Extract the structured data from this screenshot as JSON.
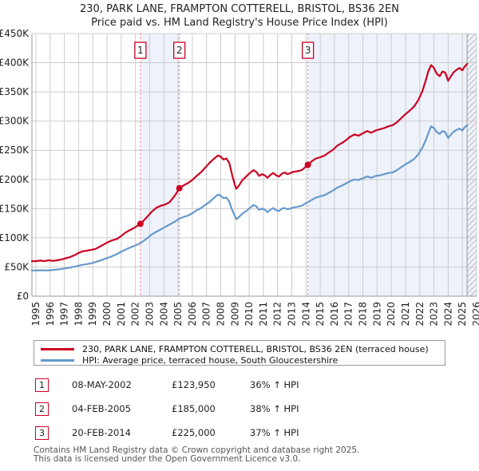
{
  "title": {
    "line1": "230, PARK LANE, FRAMPTON COTTERELL, BRISTOL, BS36 2EN",
    "line2": "Price paid vs. HM Land Registry's House Price Index (HPI)"
  },
  "colors": {
    "property_line": "#cc0022",
    "hpi_line": "#6699cc",
    "sale_dash": "#e57373",
    "shade": "#eef2fb",
    "grid": "#cccccc",
    "axis": "#999999",
    "border_light": "#cccccc",
    "hatch": "#bbbbbb",
    "tick_text": "#222222",
    "badge_border": "#cc0022"
  },
  "chart_data": {
    "type": "line",
    "title": "230, PARK LANE, FRAMPTON COTTERELL, BRISTOL, BS36 2EN — Price paid vs. HPI",
    "xlabel": "",
    "ylabel": "",
    "grid": true,
    "legend_position": "bottom",
    "xlim": [
      1995,
      2026
    ],
    "ylim": [
      0,
      450000
    ],
    "y_ticks": [
      {
        "v": 0,
        "label": "£0"
      },
      {
        "v": 50000,
        "label": "£50K"
      },
      {
        "v": 100000,
        "label": "£100K"
      },
      {
        "v": 150000,
        "label": "£150K"
      },
      {
        "v": 200000,
        "label": "£200K"
      },
      {
        "v": 250000,
        "label": "£250K"
      },
      {
        "v": 300000,
        "label": "£300K"
      },
      {
        "v": 350000,
        "label": "£350K"
      },
      {
        "v": 400000,
        "label": "£400K"
      },
      {
        "v": 450000,
        "label": "£450K"
      }
    ],
    "x_ticks": [
      "1995",
      "1996",
      "1997",
      "1998",
      "1999",
      "2000",
      "2001",
      "2002",
      "2003",
      "2004",
      "2005",
      "2006",
      "2007",
      "2008",
      "2009",
      "2010",
      "2011",
      "2012",
      "2013",
      "2014",
      "2015",
      "2016",
      "2017",
      "2018",
      "2019",
      "2020",
      "2021",
      "2022",
      "2023",
      "2024",
      "2025",
      "2026"
    ],
    "shaded_regions": [
      [
        2002.35,
        2005.09
      ],
      [
        2014.13,
        2026
      ]
    ],
    "hatch_region": [
      2025.33,
      2026
    ],
    "sale_markers": [
      {
        "n": "1",
        "x": 2002.35,
        "value": 123950
      },
      {
        "n": "2",
        "x": 2005.09,
        "value": 185000
      },
      {
        "n": "3",
        "x": 2014.13,
        "value": 225000
      }
    ],
    "series": [
      {
        "name": "230, PARK LANE, FRAMPTON COTTERELL, BRISTOL, BS36 2EN (terraced house)",
        "color": "#cc0022",
        "points": [
          [
            1995.0,
            60000
          ],
          [
            1995.3,
            61000
          ],
          [
            1995.6,
            60000
          ],
          [
            1995.9,
            61500
          ],
          [
            1996.2,
            60500
          ],
          [
            1996.5,
            61500
          ],
          [
            1996.8,
            63000
          ],
          [
            1997.1,
            65000
          ],
          [
            1997.4,
            67000
          ],
          [
            1997.7,
            70000
          ],
          [
            1998.0,
            74000
          ],
          [
            1998.3,
            77000
          ],
          [
            1998.6,
            78000
          ],
          [
            1998.9,
            79500
          ],
          [
            1999.2,
            81000
          ],
          [
            1999.5,
            85000
          ],
          [
            1999.8,
            89000
          ],
          [
            2000.1,
            93000
          ],
          [
            2000.4,
            96000
          ],
          [
            2000.7,
            98000
          ],
          [
            2001.0,
            103000
          ],
          [
            2001.3,
            109000
          ],
          [
            2001.6,
            113000
          ],
          [
            2001.9,
            117000
          ],
          [
            2002.35,
            123950
          ],
          [
            2002.6,
            130000
          ],
          [
            2002.9,
            138000
          ],
          [
            2003.2,
            146000
          ],
          [
            2003.5,
            152000
          ],
          [
            2003.8,
            155000
          ],
          [
            2004.1,
            157000
          ],
          [
            2004.4,
            161000
          ],
          [
            2004.7,
            170000
          ],
          [
            2004.9,
            177000
          ],
          [
            2005.09,
            185000
          ],
          [
            2005.4,
            190000
          ],
          [
            2005.7,
            194000
          ],
          [
            2006.0,
            199000
          ],
          [
            2006.3,
            206000
          ],
          [
            2006.6,
            212000
          ],
          [
            2006.9,
            220000
          ],
          [
            2007.2,
            228000
          ],
          [
            2007.5,
            235000
          ],
          [
            2007.8,
            241000
          ],
          [
            2008.0,
            239000
          ],
          [
            2008.2,
            234000
          ],
          [
            2008.4,
            236000
          ],
          [
            2008.6,
            228000
          ],
          [
            2008.8,
            208000
          ],
          [
            2009.0,
            190000
          ],
          [
            2009.1,
            184000
          ],
          [
            2009.3,
            190000
          ],
          [
            2009.5,
            198000
          ],
          [
            2009.8,
            205000
          ],
          [
            2010.0,
            210000
          ],
          [
            2010.3,
            216000
          ],
          [
            2010.5,
            213000
          ],
          [
            2010.7,
            206000
          ],
          [
            2010.9,
            209000
          ],
          [
            2011.1,
            207000
          ],
          [
            2011.3,
            203000
          ],
          [
            2011.5,
            208000
          ],
          [
            2011.7,
            211000
          ],
          [
            2011.9,
            207000
          ],
          [
            2012.1,
            205000
          ],
          [
            2012.3,
            210000
          ],
          [
            2012.5,
            212000
          ],
          [
            2012.7,
            209000
          ],
          [
            2012.9,
            211000
          ],
          [
            2013.1,
            213000
          ],
          [
            2013.4,
            214000
          ],
          [
            2013.7,
            216000
          ],
          [
            2013.9,
            220000
          ],
          [
            2014.13,
            225000
          ],
          [
            2014.4,
            231000
          ],
          [
            2014.7,
            236000
          ],
          [
            2015.0,
            238000
          ],
          [
            2015.3,
            241000
          ],
          [
            2015.6,
            246000
          ],
          [
            2015.9,
            251000
          ],
          [
            2016.2,
            258000
          ],
          [
            2016.5,
            262000
          ],
          [
            2016.8,
            267000
          ],
          [
            2017.1,
            273000
          ],
          [
            2017.4,
            277000
          ],
          [
            2017.7,
            275000
          ],
          [
            2018.0,
            279000
          ],
          [
            2018.3,
            283000
          ],
          [
            2018.6,
            280000
          ],
          [
            2018.9,
            284000
          ],
          [
            2019.2,
            286000
          ],
          [
            2019.5,
            288000
          ],
          [
            2019.8,
            291000
          ],
          [
            2020.1,
            293000
          ],
          [
            2020.4,
            298000
          ],
          [
            2020.7,
            305000
          ],
          [
            2021.0,
            312000
          ],
          [
            2021.3,
            318000
          ],
          [
            2021.6,
            325000
          ],
          [
            2021.9,
            336000
          ],
          [
            2022.2,
            352000
          ],
          [
            2022.4,
            368000
          ],
          [
            2022.6,
            385000
          ],
          [
            2022.8,
            396000
          ],
          [
            2023.0,
            391000
          ],
          [
            2023.2,
            381000
          ],
          [
            2023.4,
            377000
          ],
          [
            2023.6,
            385000
          ],
          [
            2023.8,
            383000
          ],
          [
            2024.0,
            369000
          ],
          [
            2024.2,
            377000
          ],
          [
            2024.4,
            384000
          ],
          [
            2024.6,
            388000
          ],
          [
            2024.8,
            391000
          ],
          [
            2025.0,
            387000
          ],
          [
            2025.15,
            393000
          ],
          [
            2025.33,
            398000
          ]
        ]
      },
      {
        "name": "HPI: Average price, terraced house, South Gloucestershire",
        "color": "#6699cc",
        "points": [
          [
            1995.0,
            44000
          ],
          [
            1995.4,
            44500
          ],
          [
            1995.8,
            44000
          ],
          [
            1996.2,
            45000
          ],
          [
            1996.6,
            46000
          ],
          [
            1997.0,
            47500
          ],
          [
            1997.4,
            49000
          ],
          [
            1997.8,
            51000
          ],
          [
            1998.2,
            53500
          ],
          [
            1998.6,
            55000
          ],
          [
            1999.0,
            57000
          ],
          [
            1999.4,
            60000
          ],
          [
            1999.8,
            63500
          ],
          [
            2000.2,
            67000
          ],
          [
            2000.6,
            71000
          ],
          [
            2001.0,
            76000
          ],
          [
            2001.4,
            81000
          ],
          [
            2001.8,
            85000
          ],
          [
            2002.2,
            89000
          ],
          [
            2002.35,
            91000
          ],
          [
            2002.7,
            97000
          ],
          [
            2003.0,
            103000
          ],
          [
            2003.3,
            108000
          ],
          [
            2003.6,
            112000
          ],
          [
            2003.9,
            116000
          ],
          [
            2004.2,
            120000
          ],
          [
            2004.5,
            124000
          ],
          [
            2004.8,
            128000
          ],
          [
            2005.09,
            133000
          ],
          [
            2005.4,
            136000
          ],
          [
            2005.7,
            138000
          ],
          [
            2006.0,
            142000
          ],
          [
            2006.3,
            147000
          ],
          [
            2006.6,
            151000
          ],
          [
            2006.9,
            156000
          ],
          [
            2007.2,
            161000
          ],
          [
            2007.5,
            168000
          ],
          [
            2007.8,
            174000
          ],
          [
            2008.0,
            172000
          ],
          [
            2008.2,
            168000
          ],
          [
            2008.4,
            169000
          ],
          [
            2008.6,
            162000
          ],
          [
            2008.8,
            148000
          ],
          [
            2009.0,
            137000
          ],
          [
            2009.1,
            132000
          ],
          [
            2009.3,
            136000
          ],
          [
            2009.5,
            141000
          ],
          [
            2009.8,
            146000
          ],
          [
            2010.0,
            150000
          ],
          [
            2010.3,
            156000
          ],
          [
            2010.5,
            154000
          ],
          [
            2010.7,
            148000
          ],
          [
            2010.9,
            150000
          ],
          [
            2011.1,
            148000
          ],
          [
            2011.3,
            144000
          ],
          [
            2011.5,
            148000
          ],
          [
            2011.7,
            151000
          ],
          [
            2011.9,
            147000
          ],
          [
            2012.1,
            146000
          ],
          [
            2012.3,
            150000
          ],
          [
            2012.5,
            151000
          ],
          [
            2012.7,
            149000
          ],
          [
            2012.9,
            150000
          ],
          [
            2013.1,
            152000
          ],
          [
            2013.4,
            153000
          ],
          [
            2013.7,
            155000
          ],
          [
            2013.9,
            158000
          ],
          [
            2014.13,
            161000
          ],
          [
            2014.4,
            165000
          ],
          [
            2014.7,
            169000
          ],
          [
            2015.0,
            171000
          ],
          [
            2015.3,
            173000
          ],
          [
            2015.6,
            177000
          ],
          [
            2015.9,
            181000
          ],
          [
            2016.2,
            186000
          ],
          [
            2016.5,
            189000
          ],
          [
            2016.8,
            193000
          ],
          [
            2017.1,
            197000
          ],
          [
            2017.4,
            200000
          ],
          [
            2017.7,
            199000
          ],
          [
            2018.0,
            202000
          ],
          [
            2018.3,
            205000
          ],
          [
            2018.6,
            203000
          ],
          [
            2018.9,
            206000
          ],
          [
            2019.2,
            207000
          ],
          [
            2019.5,
            209000
          ],
          [
            2019.8,
            211000
          ],
          [
            2020.1,
            212000
          ],
          [
            2020.4,
            216000
          ],
          [
            2020.7,
            221000
          ],
          [
            2021.0,
            226000
          ],
          [
            2021.3,
            230000
          ],
          [
            2021.6,
            235000
          ],
          [
            2021.9,
            243000
          ],
          [
            2022.2,
            255000
          ],
          [
            2022.4,
            266000
          ],
          [
            2022.6,
            279000
          ],
          [
            2022.8,
            291000
          ],
          [
            2023.0,
            288000
          ],
          [
            2023.2,
            281000
          ],
          [
            2023.4,
            278000
          ],
          [
            2023.6,
            283000
          ],
          [
            2023.8,
            281000
          ],
          [
            2024.0,
            271000
          ],
          [
            2024.2,
            277000
          ],
          [
            2024.4,
            282000
          ],
          [
            2024.6,
            285000
          ],
          [
            2024.8,
            287000
          ],
          [
            2025.0,
            284000
          ],
          [
            2025.15,
            289000
          ],
          [
            2025.33,
            293000
          ]
        ]
      }
    ]
  },
  "legend": {
    "entries": [
      {
        "label": "230, PARK LANE, FRAMPTON COTTERELL, BRISTOL, BS36 2EN (terraced house)"
      },
      {
        "label": "HPI: Average price, terraced house, South Gloucestershire"
      }
    ]
  },
  "transactions": [
    {
      "n": "1",
      "date": "08-MAY-2002",
      "price": "£123,950",
      "hpi": "36% ↑ HPI"
    },
    {
      "n": "2",
      "date": "04-FEB-2005",
      "price": "£185,000",
      "hpi": "38% ↑ HPI"
    },
    {
      "n": "3",
      "date": "20-FEB-2014",
      "price": "£225,000",
      "hpi": "37% ↑ HPI"
    }
  ],
  "footer": {
    "line1": "Contains HM Land Registry data © Crown copyright and database right 2025.",
    "line2": "This data is licensed under the Open Government Licence v3.0."
  }
}
